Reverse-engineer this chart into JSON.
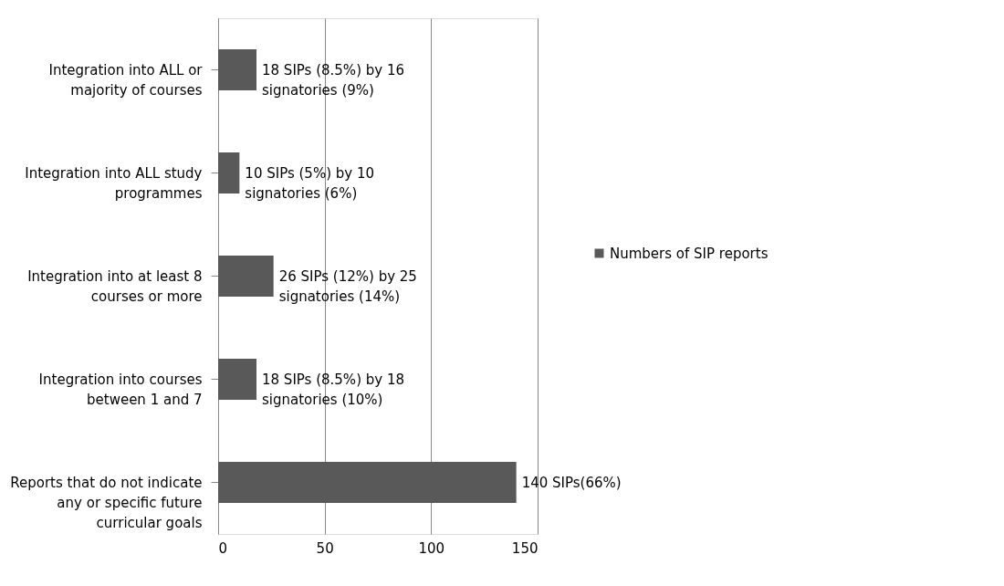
{
  "chart_data": {
    "type": "bar",
    "orientation": "horizontal",
    "categories": [
      "Integration into ALL or majority of courses",
      "Integration into ALL study programmes",
      "Integration into at least 8 courses or more",
      "Integration into courses between 1 and 7",
      "Reports that do not indicate any or specific future curricular goals"
    ],
    "series": [
      {
        "name": "Numbers of SIP reports",
        "color": "#595959",
        "values": [
          18,
          10,
          26,
          18,
          140
        ],
        "value_labels": [
          "18 SIPs (8.5%) by 16 signatories (9%)",
          "10 SIPs (5%) by 10 signatories (6%)",
          "26 SIPs (12%) by 25 signatories (14%)",
          "18 SIPs (8.5%) by 18 signatories (10%)",
          "140 SIPs(66%)"
        ]
      }
    ],
    "xlim": [
      0,
      150
    ],
    "xticks": [
      0,
      50,
      100,
      150
    ],
    "grid": "x",
    "legend": "right"
  }
}
